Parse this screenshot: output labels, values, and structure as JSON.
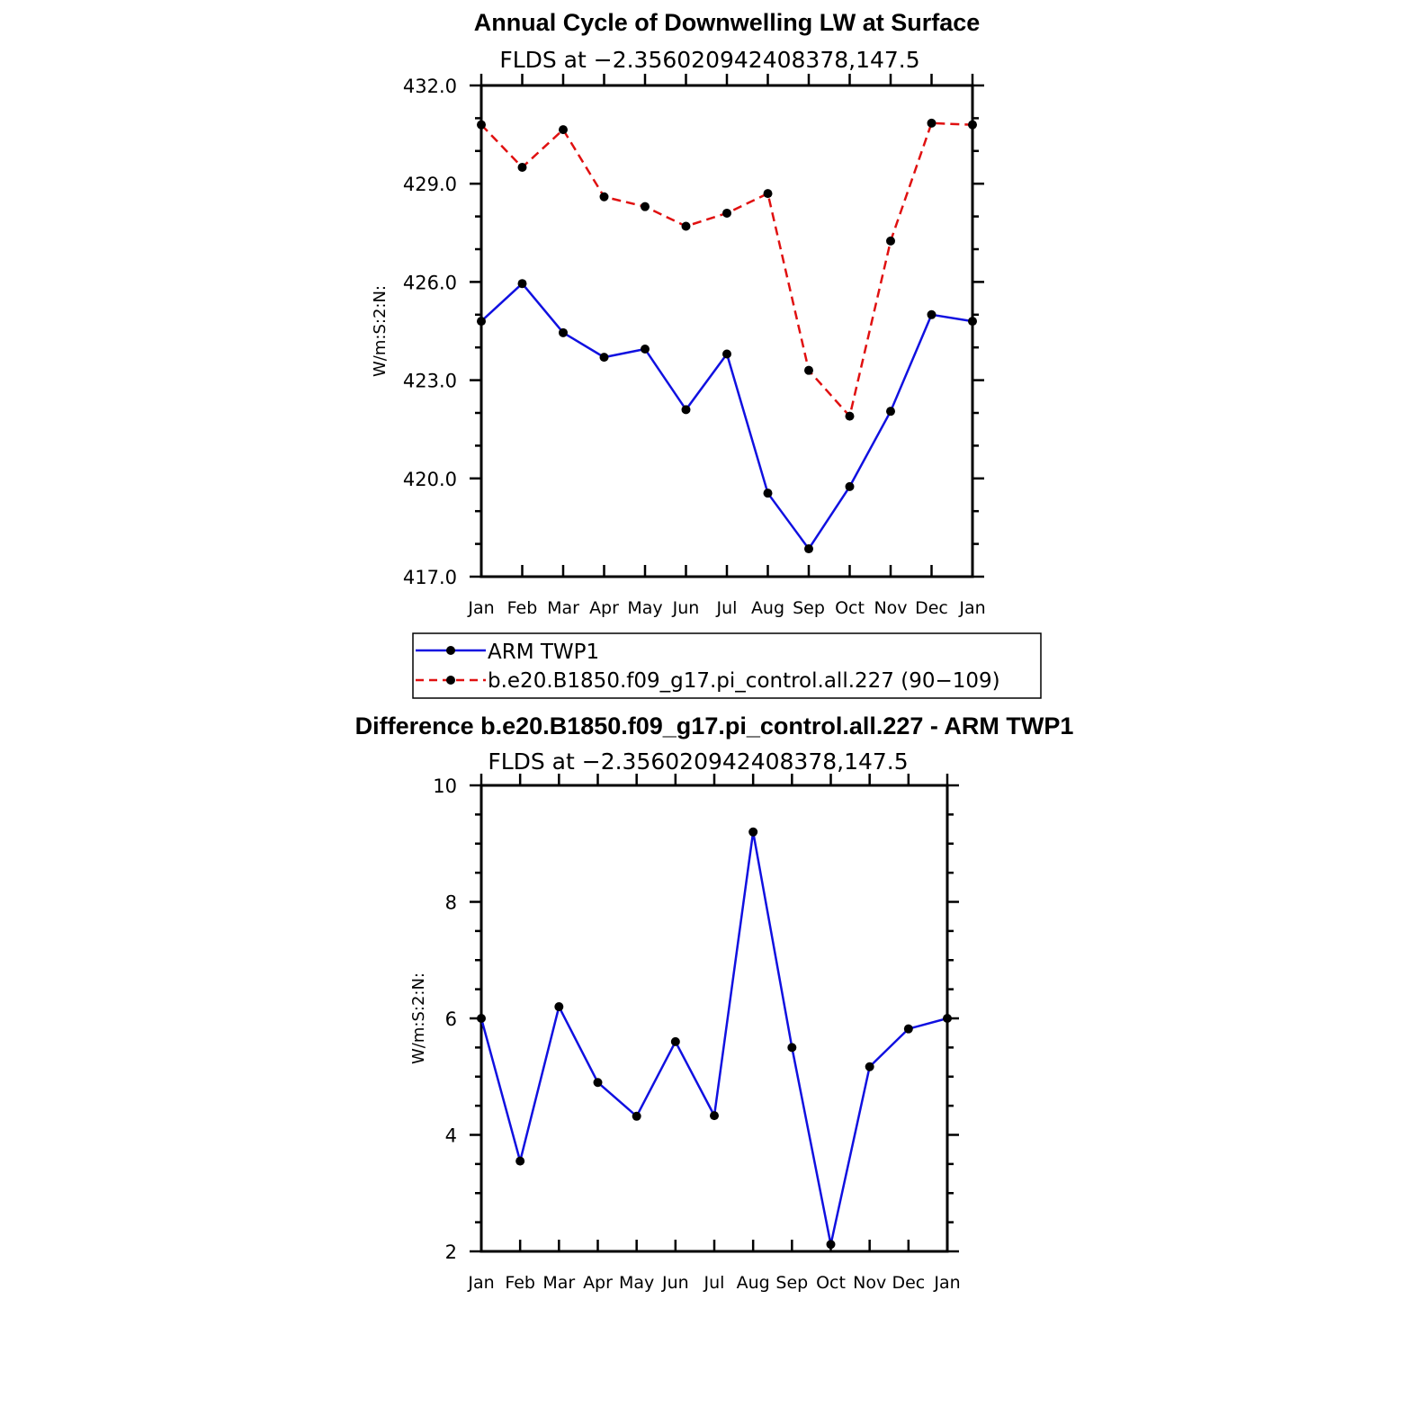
{
  "colors": {
    "obs": "#1010e0",
    "model": "#e01010",
    "marker": "#000000",
    "axis": "#000000"
  },
  "chart_data": [
    {
      "type": "line",
      "title": "Annual Cycle of Downwelling LW at Surface",
      "subtitle": "FLDS at −2.356020942408378,147.5",
      "ylabel": "W/m:S:2:N:",
      "xlabel": "",
      "categories": [
        "Jan",
        "Feb",
        "Mar",
        "Apr",
        "May",
        "Jun",
        "Jul",
        "Aug",
        "Sep",
        "Oct",
        "Nov",
        "Dec",
        "Jan"
      ],
      "ylim": [
        417.0,
        432.0
      ],
      "yticks": [
        417.0,
        420.0,
        423.0,
        426.0,
        429.0,
        432.0
      ],
      "ytick_labels": [
        "417.0",
        "420.0",
        "423.0",
        "426.0",
        "429.0",
        "432.0"
      ],
      "yminor_step": 1.0,
      "grid": false,
      "series": [
        {
          "name": "ARM TWP1",
          "style": "solid",
          "color": "#1010e0",
          "values": [
            424.8,
            425.95,
            424.45,
            423.7,
            423.95,
            422.1,
            423.8,
            419.55,
            417.85,
            419.75,
            422.05,
            425.0,
            424.8
          ]
        },
        {
          "name": "b.e20.B1850.f09_g17.pi_control.all.227 (90−109)",
          "style": "dashed",
          "color": "#e01010",
          "values": [
            430.8,
            429.5,
            430.65,
            428.6,
            428.3,
            427.7,
            428.1,
            428.7,
            423.3,
            421.9,
            427.25,
            430.85,
            430.8
          ]
        }
      ],
      "legend": {
        "placement": "below"
      }
    },
    {
      "type": "line",
      "title": "Difference b.e20.B1850.f09_g17.pi_control.all.227 - ARM TWP1",
      "subtitle": "FLDS at −2.356020942408378,147.5",
      "ylabel": "W/m:S:2:N:",
      "xlabel": "",
      "categories": [
        "Jan",
        "Feb",
        "Mar",
        "Apr",
        "May",
        "Jun",
        "Jul",
        "Aug",
        "Sep",
        "Oct",
        "Nov",
        "Dec",
        "Jan"
      ],
      "ylim": [
        2,
        10
      ],
      "yticks": [
        2,
        4,
        6,
        8,
        10
      ],
      "ytick_labels": [
        "2",
        "4",
        "6",
        "8",
        "10"
      ],
      "yminor_step": 0.5,
      "grid": false,
      "series": [
        {
          "style": "solid",
          "color": "#1010e0",
          "values": [
            6.0,
            3.55,
            6.2,
            4.9,
            4.32,
            5.6,
            4.33,
            9.2,
            5.5,
            2.12,
            5.17,
            5.82,
            6.0
          ]
        }
      ]
    }
  ]
}
